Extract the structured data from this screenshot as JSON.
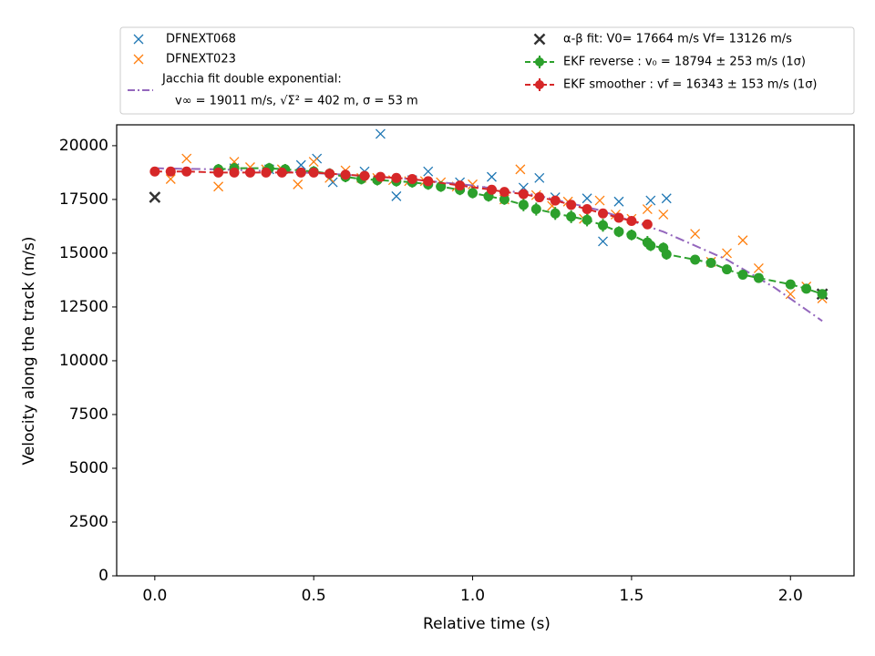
{
  "chart_data": {
    "type": "scatter",
    "x_label": "Relative time (s)",
    "y_label": "Velocity along the track (m/s)",
    "xlim": [
      -0.12,
      2.2
    ],
    "ylim": [
      0,
      20970
    ],
    "xticks": [
      {
        "value": 0,
        "label": "0.0"
      },
      {
        "value": 0.5,
        "label": "0.5"
      },
      {
        "value": 1,
        "label": "1.0"
      },
      {
        "value": 1.5,
        "label": "1.5"
      },
      {
        "value": 2,
        "label": "2.0"
      }
    ],
    "yticks": [
      0,
      2500,
      5000,
      7500,
      10000,
      12500,
      15000,
      17500,
      20000
    ],
    "series": [
      {
        "name": "DFNEXT068",
        "color": "#1f77b4",
        "style": "x",
        "x": [
          0.25,
          0.36,
          0.46,
          0.51,
          0.56,
          0.66,
          0.71,
          0.76,
          0.81,
          0.86,
          0.96,
          1.06,
          1.16,
          1.21,
          1.26,
          1.36,
          1.41,
          1.46,
          1.56,
          1.61
        ],
        "values": [
          18950,
          18900,
          19100,
          19400,
          18300,
          18800,
          20550,
          17650,
          18400,
          18800,
          18300,
          18550,
          18050,
          18500,
          17600,
          17550,
          15550,
          17400,
          17450,
          17550
        ]
      },
      {
        "name": "DFNEXT023",
        "color": "#ff7f0e",
        "style": "x",
        "x": [
          0.05,
          0.1,
          0.2,
          0.25,
          0.3,
          0.35,
          0.4,
          0.45,
          0.5,
          0.55,
          0.6,
          0.65,
          0.7,
          0.75,
          0.8,
          0.85,
          0.9,
          0.95,
          1.0,
          1.05,
          1.1,
          1.15,
          1.2,
          1.25,
          1.3,
          1.35,
          1.4,
          1.45,
          1.5,
          1.55,
          1.6,
          1.7,
          1.75,
          1.8,
          1.85,
          1.9,
          2.0,
          2.05,
          2.1
        ],
        "values": [
          18450,
          19400,
          18100,
          19250,
          19000,
          18900,
          18900,
          18200,
          19250,
          18500,
          18850,
          18500,
          18500,
          18400,
          18350,
          18350,
          18300,
          18100,
          18200,
          17900,
          17500,
          18900,
          17700,
          17200,
          17400,
          16600,
          17450,
          16800,
          16600,
          17050,
          16800,
          15900,
          14600,
          15000,
          15600,
          14300,
          13100,
          13450,
          12900
        ]
      },
      {
        "name": "Jacchia fit double exponential:",
        "name_line2": "v∞ = 19011 m/s, √Σ² = 402 m, σ = 53 m",
        "color": "#9467bd",
        "style": "dashdot",
        "x": [
          0,
          0.2,
          0.4,
          0.6,
          0.8,
          1.0,
          1.2,
          1.4,
          1.6,
          1.8,
          1.95,
          2.1
        ],
        "values": [
          18950,
          18900,
          18800,
          18650,
          18450,
          18150,
          17700,
          17000,
          16000,
          14700,
          13400,
          11850
        ]
      },
      {
        "name": "α-β fit: V0= 17664 m/s   Vf= 13126 m/s",
        "color": "#333333",
        "style": "bigx",
        "x": [
          0,
          2.1
        ],
        "values": [
          17600,
          13100
        ]
      },
      {
        "name": "EKF reverse : v₀ =  18794 ± 253 m/s (1σ)",
        "color": "#2ca02c",
        "style": "errorbar",
        "x": [
          0.2,
          0.25,
          0.36,
          0.41,
          0.5,
          0.55,
          0.6,
          0.65,
          0.7,
          0.76,
          0.81,
          0.86,
          0.9,
          0.96,
          1.0,
          1.05,
          1.1,
          1.16,
          1.2,
          1.26,
          1.31,
          1.36,
          1.41,
          1.46,
          1.5,
          1.55,
          1.56,
          1.6,
          1.61,
          1.7,
          1.75,
          1.8,
          1.85,
          1.9,
          2.0,
          2.05,
          2.1
        ],
        "values": [
          18900,
          18950,
          18950,
          18900,
          18800,
          18700,
          18550,
          18450,
          18400,
          18350,
          18300,
          18200,
          18100,
          17950,
          17800,
          17650,
          17500,
          17250,
          17050,
          16850,
          16700,
          16550,
          16300,
          16000,
          15850,
          15500,
          15350,
          15250,
          14950,
          14700,
          14550,
          14250,
          14000,
          13850,
          13550,
          13350,
          13100
        ],
        "errors": [
          250,
          250,
          250,
          250,
          250,
          250,
          250,
          250,
          250,
          250,
          250,
          250,
          250,
          250,
          250,
          250,
          250,
          300,
          300,
          300,
          300,
          300,
          300,
          250,
          250,
          300,
          250,
          250,
          250,
          200,
          200,
          200,
          200,
          200,
          200,
          200,
          200
        ]
      },
      {
        "name": "EKF smoother : vf =  16343 ± 153 m/s (1σ)",
        "color": "#d62728",
        "style": "errorbar",
        "x": [
          0,
          0.05,
          0.1,
          0.2,
          0.25,
          0.3,
          0.35,
          0.4,
          0.46,
          0.5,
          0.55,
          0.6,
          0.66,
          0.71,
          0.76,
          0.81,
          0.86,
          0.96,
          1.06,
          1.1,
          1.16,
          1.21,
          1.26,
          1.31,
          1.36,
          1.41,
          1.46,
          1.5,
          1.55
        ],
        "values": [
          18800,
          18800,
          18800,
          18750,
          18750,
          18750,
          18750,
          18750,
          18750,
          18750,
          18700,
          18650,
          18600,
          18550,
          18500,
          18450,
          18350,
          18150,
          17950,
          17850,
          17750,
          17600,
          17450,
          17250,
          17050,
          16850,
          16650,
          16500,
          16343
        ],
        "errors": [
          150,
          150,
          150,
          150,
          150,
          150,
          150,
          150,
          150,
          150,
          150,
          150,
          150,
          150,
          150,
          150,
          150,
          150,
          150,
          150,
          150,
          150,
          150,
          150,
          150,
          150,
          150,
          150,
          150
        ]
      }
    ]
  }
}
